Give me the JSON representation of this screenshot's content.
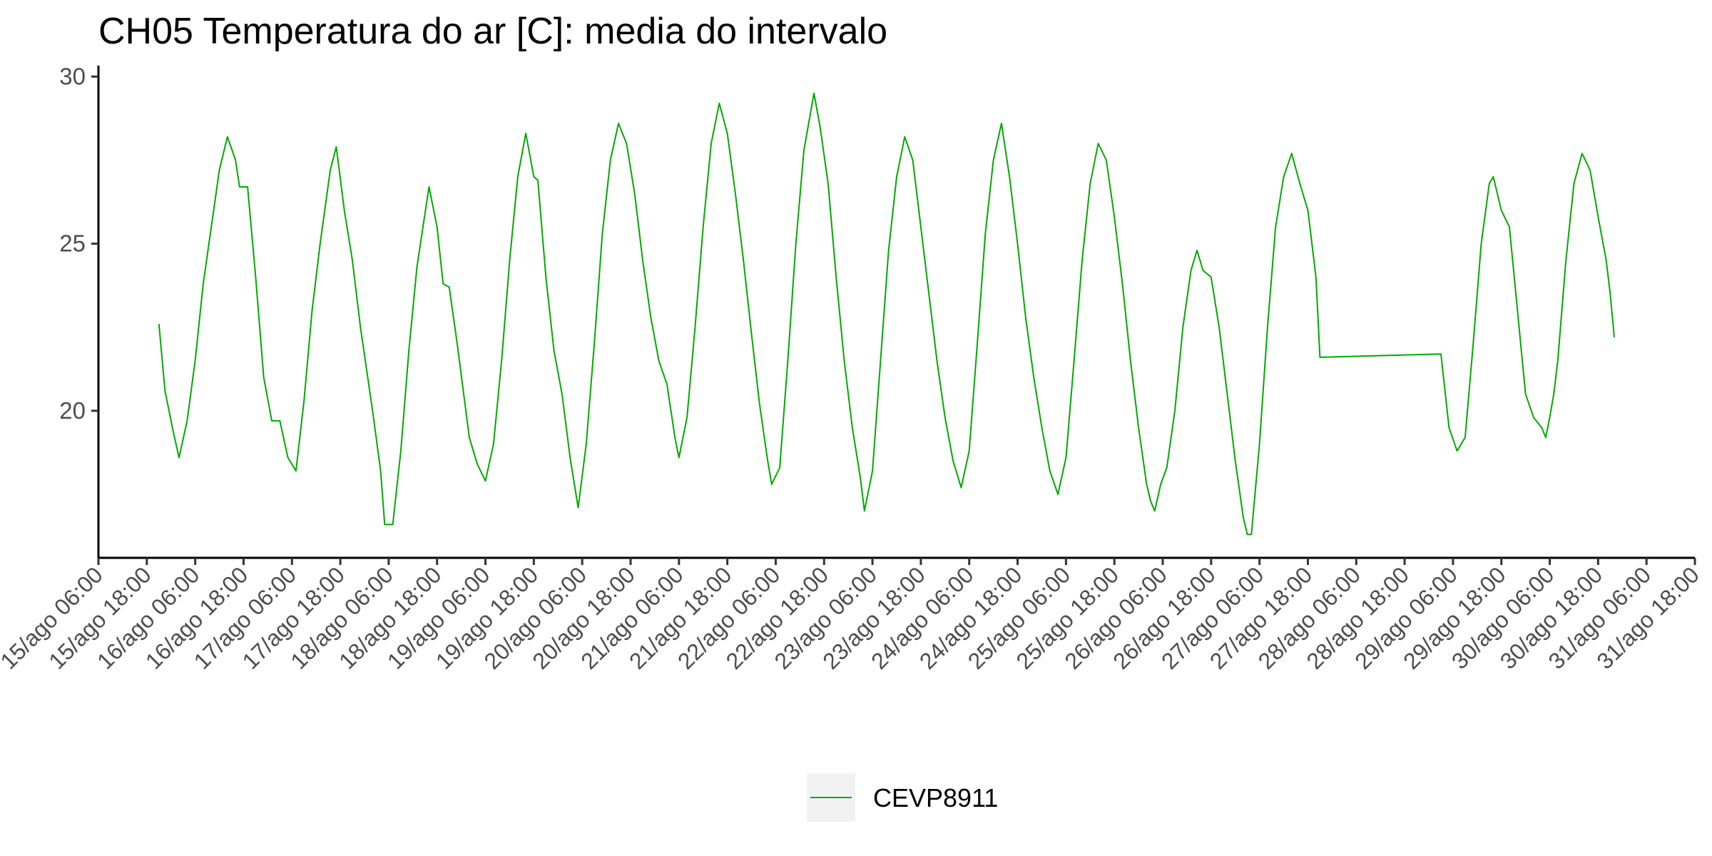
{
  "chart_data": {
    "type": "line",
    "title": "CH05 Temperatura do ar [C]: media do intervalo",
    "xlabel": "",
    "ylabel": "",
    "ylim": [
      15.6,
      30.2
    ],
    "yticks": [
      20,
      25,
      30
    ],
    "xlim": [
      "2023-08-15T06:00",
      "2023-08-31T18:00"
    ],
    "xticks": [
      {
        "t": "2023-08-15T06:00",
        "label": "15/ago 06:00"
      },
      {
        "t": "2023-08-15T18:00",
        "label": "15/ago 18:00"
      },
      {
        "t": "2023-08-16T06:00",
        "label": "16/ago 06:00"
      },
      {
        "t": "2023-08-16T18:00",
        "label": "16/ago 18:00"
      },
      {
        "t": "2023-08-17T06:00",
        "label": "17/ago 06:00"
      },
      {
        "t": "2023-08-17T18:00",
        "label": "17/ago 18:00"
      },
      {
        "t": "2023-08-18T06:00",
        "label": "18/ago 06:00"
      },
      {
        "t": "2023-08-18T18:00",
        "label": "18/ago 18:00"
      },
      {
        "t": "2023-08-19T06:00",
        "label": "19/ago 06:00"
      },
      {
        "t": "2023-08-19T18:00",
        "label": "19/ago 18:00"
      },
      {
        "t": "2023-08-20T06:00",
        "label": "20/ago 06:00"
      },
      {
        "t": "2023-08-20T18:00",
        "label": "20/ago 18:00"
      },
      {
        "t": "2023-08-21T06:00",
        "label": "21/ago 06:00"
      },
      {
        "t": "2023-08-21T18:00",
        "label": "21/ago 18:00"
      },
      {
        "t": "2023-08-22T06:00",
        "label": "22/ago 06:00"
      },
      {
        "t": "2023-08-22T18:00",
        "label": "22/ago 18:00"
      },
      {
        "t": "2023-08-23T06:00",
        "label": "23/ago 06:00"
      },
      {
        "t": "2023-08-23T18:00",
        "label": "23/ago 18:00"
      },
      {
        "t": "2023-08-24T06:00",
        "label": "24/ago 06:00"
      },
      {
        "t": "2023-08-24T18:00",
        "label": "24/ago 18:00"
      },
      {
        "t": "2023-08-25T06:00",
        "label": "25/ago 06:00"
      },
      {
        "t": "2023-08-25T18:00",
        "label": "25/ago 18:00"
      },
      {
        "t": "2023-08-26T06:00",
        "label": "26/ago 06:00"
      },
      {
        "t": "2023-08-26T18:00",
        "label": "26/ago 18:00"
      },
      {
        "t": "2023-08-27T06:00",
        "label": "27/ago 06:00"
      },
      {
        "t": "2023-08-27T18:00",
        "label": "27/ago 18:00"
      },
      {
        "t": "2023-08-28T06:00",
        "label": "28/ago 06:00"
      },
      {
        "t": "2023-08-28T18:00",
        "label": "28/ago 18:00"
      },
      {
        "t": "2023-08-29T06:00",
        "label": "29/ago 06:00"
      },
      {
        "t": "2023-08-29T18:00",
        "label": "29/ago 18:00"
      },
      {
        "t": "2023-08-30T06:00",
        "label": "30/ago 06:00"
      },
      {
        "t": "2023-08-30T18:00",
        "label": "30/ago 18:00"
      },
      {
        "t": "2023-08-31T06:00",
        "label": "31/ago 06:00"
      },
      {
        "t": "2023-08-31T18:00",
        "label": "31/ago 18:00"
      }
    ],
    "grid": false,
    "legend_position": "bottom",
    "series": [
      {
        "name": "CEVP8911",
        "color": "#00aa00",
        "points": [
          [
            "2023-08-15T21:00",
            22.6
          ],
          [
            "2023-08-15T22:30",
            20.6
          ],
          [
            "2023-08-16T00:30",
            19.4
          ],
          [
            "2023-08-16T02:00",
            18.6
          ],
          [
            "2023-08-16T04:00",
            19.7
          ],
          [
            "2023-08-16T06:00",
            21.5
          ],
          [
            "2023-08-16T08:00",
            23.8
          ],
          [
            "2023-08-16T10:00",
            25.5
          ],
          [
            "2023-08-16T12:00",
            27.2
          ],
          [
            "2023-08-16T14:00",
            28.2
          ],
          [
            "2023-08-16T16:00",
            27.5
          ],
          [
            "2023-08-16T17:00",
            26.7
          ],
          [
            "2023-08-16T19:00",
            26.7
          ],
          [
            "2023-08-16T21:00",
            24.0
          ],
          [
            "2023-08-16T23:00",
            21.0
          ],
          [
            "2023-08-17T01:00",
            19.7
          ],
          [
            "2023-08-17T03:00",
            19.7
          ],
          [
            "2023-08-17T05:00",
            18.6
          ],
          [
            "2023-08-17T07:00",
            18.2
          ],
          [
            "2023-08-17T09:00",
            20.3
          ],
          [
            "2023-08-17T11:00",
            23.0
          ],
          [
            "2023-08-17T13:00",
            25.0
          ],
          [
            "2023-08-17T15:30",
            27.2
          ],
          [
            "2023-08-17T17:00",
            27.9
          ],
          [
            "2023-08-17T19:00",
            26.0
          ],
          [
            "2023-08-17T21:00",
            24.5
          ],
          [
            "2023-08-17T23:00",
            22.5
          ],
          [
            "2023-08-18T02:00",
            20.0
          ],
          [
            "2023-08-18T04:00",
            18.2
          ],
          [
            "2023-08-18T05:00",
            16.6
          ],
          [
            "2023-08-18T07:00",
            16.6
          ],
          [
            "2023-08-18T09:00",
            18.8
          ],
          [
            "2023-08-18T11:00",
            21.8
          ],
          [
            "2023-08-18T13:00",
            24.3
          ],
          [
            "2023-08-18T16:00",
            26.7
          ],
          [
            "2023-08-18T18:00",
            25.5
          ],
          [
            "2023-08-18T19:30",
            23.8
          ],
          [
            "2023-08-18T21:00",
            23.7
          ],
          [
            "2023-08-18T23:00",
            22.0
          ],
          [
            "2023-08-19T02:00",
            19.2
          ],
          [
            "2023-08-19T04:00",
            18.4
          ],
          [
            "2023-08-19T06:00",
            17.9
          ],
          [
            "2023-08-19T08:00",
            19.0
          ],
          [
            "2023-08-19T10:00",
            21.5
          ],
          [
            "2023-08-19T12:00",
            24.5
          ],
          [
            "2023-08-19T14:00",
            27.0
          ],
          [
            "2023-08-19T16:00",
            28.3
          ],
          [
            "2023-08-19T18:00",
            27.0
          ],
          [
            "2023-08-19T19:00",
            26.9
          ],
          [
            "2023-08-19T21:00",
            24.0
          ],
          [
            "2023-08-19T23:00",
            21.8
          ],
          [
            "2023-08-20T01:00",
            20.5
          ],
          [
            "2023-08-20T03:00",
            18.6
          ],
          [
            "2023-08-20T05:00",
            17.1
          ],
          [
            "2023-08-20T07:00",
            19.0
          ],
          [
            "2023-08-20T09:00",
            22.0
          ],
          [
            "2023-08-20T11:00",
            25.3
          ],
          [
            "2023-08-20T13:00",
            27.5
          ],
          [
            "2023-08-20T15:00",
            28.6
          ],
          [
            "2023-08-20T17:00",
            28.0
          ],
          [
            "2023-08-20T19:00",
            26.5
          ],
          [
            "2023-08-20T21:00",
            24.5
          ],
          [
            "2023-08-20T23:00",
            22.8
          ],
          [
            "2023-08-21T01:00",
            21.5
          ],
          [
            "2023-08-21T03:00",
            20.8
          ],
          [
            "2023-08-21T05:00",
            19.2
          ],
          [
            "2023-08-21T06:00",
            18.6
          ],
          [
            "2023-08-21T08:00",
            19.8
          ],
          [
            "2023-08-21T10:00",
            22.5
          ],
          [
            "2023-08-21T12:00",
            25.5
          ],
          [
            "2023-08-21T14:00",
            28.0
          ],
          [
            "2023-08-21T16:00",
            29.2
          ],
          [
            "2023-08-21T18:00",
            28.3
          ],
          [
            "2023-08-21T20:00",
            26.5
          ],
          [
            "2023-08-21T22:00",
            24.5
          ],
          [
            "2023-08-22T00:00",
            22.3
          ],
          [
            "2023-08-22T02:00",
            20.2
          ],
          [
            "2023-08-22T04:00",
            18.5
          ],
          [
            "2023-08-22T05:00",
            17.8
          ],
          [
            "2023-08-22T07:00",
            18.3
          ],
          [
            "2023-08-22T09:00",
            21.5
          ],
          [
            "2023-08-22T11:00",
            25.0
          ],
          [
            "2023-08-22T13:00",
            27.8
          ],
          [
            "2023-08-22T15:30",
            29.5
          ],
          [
            "2023-08-22T17:00",
            28.5
          ],
          [
            "2023-08-22T19:00",
            26.8
          ],
          [
            "2023-08-22T21:00",
            24.0
          ],
          [
            "2023-08-22T23:00",
            21.5
          ],
          [
            "2023-08-23T01:00",
            19.5
          ],
          [
            "2023-08-23T03:00",
            18.0
          ],
          [
            "2023-08-23T04:00",
            17.0
          ],
          [
            "2023-08-23T06:00",
            18.2
          ],
          [
            "2023-08-23T08:00",
            21.5
          ],
          [
            "2023-08-23T10:00",
            24.8
          ],
          [
            "2023-08-23T12:00",
            27.0
          ],
          [
            "2023-08-23T14:00",
            28.2
          ],
          [
            "2023-08-23T16:00",
            27.5
          ],
          [
            "2023-08-23T18:00",
            25.5
          ],
          [
            "2023-08-23T20:00",
            23.5
          ],
          [
            "2023-08-23T22:00",
            21.5
          ],
          [
            "2023-08-24T00:00",
            19.8
          ],
          [
            "2023-08-24T02:00",
            18.5
          ],
          [
            "2023-08-24T04:00",
            17.7
          ],
          [
            "2023-08-24T06:00",
            18.8
          ],
          [
            "2023-08-24T08:00",
            22.0
          ],
          [
            "2023-08-24T10:00",
            25.3
          ],
          [
            "2023-08-24T12:00",
            27.5
          ],
          [
            "2023-08-24T14:00",
            28.6
          ],
          [
            "2023-08-24T16:00",
            27.0
          ],
          [
            "2023-08-24T18:00",
            25.0
          ],
          [
            "2023-08-24T20:00",
            22.8
          ],
          [
            "2023-08-24T22:00",
            21.0
          ],
          [
            "2023-08-25T00:00",
            19.5
          ],
          [
            "2023-08-25T02:00",
            18.2
          ],
          [
            "2023-08-25T04:00",
            17.5
          ],
          [
            "2023-08-25T06:00",
            18.6
          ],
          [
            "2023-08-25T08:00",
            21.5
          ],
          [
            "2023-08-25T10:00",
            24.5
          ],
          [
            "2023-08-25T12:00",
            26.8
          ],
          [
            "2023-08-25T14:00",
            28.0
          ],
          [
            "2023-08-25T16:00",
            27.5
          ],
          [
            "2023-08-25T18:00",
            25.8
          ],
          [
            "2023-08-25T20:00",
            23.8
          ],
          [
            "2023-08-25T22:00",
            21.5
          ],
          [
            "2023-08-26T00:00",
            19.5
          ],
          [
            "2023-08-26T02:00",
            17.8
          ],
          [
            "2023-08-26T03:00",
            17.3
          ],
          [
            "2023-08-26T04:00",
            17.0
          ],
          [
            "2023-08-26T05:30",
            17.8
          ],
          [
            "2023-08-26T07:00",
            18.3
          ],
          [
            "2023-08-26T09:00",
            20.0
          ],
          [
            "2023-08-26T11:00",
            22.5
          ],
          [
            "2023-08-26T13:00",
            24.2
          ],
          [
            "2023-08-26T14:30",
            24.8
          ],
          [
            "2023-08-26T16:00",
            24.2
          ],
          [
            "2023-08-26T18:00",
            24.0
          ],
          [
            "2023-08-26T20:00",
            22.5
          ],
          [
            "2023-08-26T22:00",
            20.5
          ],
          [
            "2023-08-27T00:00",
            18.5
          ],
          [
            "2023-08-27T02:00",
            16.8
          ],
          [
            "2023-08-27T03:00",
            16.3
          ],
          [
            "2023-08-27T04:00",
            16.3
          ],
          [
            "2023-08-27T06:00",
            19.0
          ],
          [
            "2023-08-27T08:00",
            22.5
          ],
          [
            "2023-08-27T10:00",
            25.5
          ],
          [
            "2023-08-27T12:00",
            27.0
          ],
          [
            "2023-08-27T14:00",
            27.7
          ],
          [
            "2023-08-27T16:00",
            26.8
          ],
          [
            "2023-08-27T18:00",
            26.0
          ],
          [
            "2023-08-27T20:00",
            24.0
          ],
          [
            "2023-08-27T21:00",
            21.6
          ],
          [
            "2023-08-29T03:00",
            21.7
          ],
          [
            "2023-08-29T05:00",
            19.5
          ],
          [
            "2023-08-29T07:00",
            18.8
          ],
          [
            "2023-08-29T09:00",
            19.2
          ],
          [
            "2023-08-29T11:00",
            22.0
          ],
          [
            "2023-08-29T13:00",
            25.0
          ],
          [
            "2023-08-29T15:00",
            26.8
          ],
          [
            "2023-08-29T16:00",
            27.0
          ],
          [
            "2023-08-29T18:00",
            26.0
          ],
          [
            "2023-08-29T20:00",
            25.5
          ],
          [
            "2023-08-29T22:00",
            23.0
          ],
          [
            "2023-08-30T00:00",
            20.5
          ],
          [
            "2023-08-30T02:00",
            19.8
          ],
          [
            "2023-08-30T04:00",
            19.5
          ],
          [
            "2023-08-30T05:00",
            19.2
          ],
          [
            "2023-08-30T06:00",
            19.8
          ],
          [
            "2023-08-30T07:00",
            20.5
          ],
          [
            "2023-08-30T08:00",
            21.5
          ],
          [
            "2023-08-30T10:00",
            24.5
          ],
          [
            "2023-08-30T12:00",
            26.8
          ],
          [
            "2023-08-30T14:00",
            27.7
          ],
          [
            "2023-08-30T16:00",
            27.2
          ],
          [
            "2023-08-30T18:00",
            25.8
          ],
          [
            "2023-08-30T20:00",
            24.5
          ],
          [
            "2023-08-30T21:00",
            23.5
          ],
          [
            "2023-08-30T22:00",
            22.2
          ]
        ]
      }
    ]
  }
}
